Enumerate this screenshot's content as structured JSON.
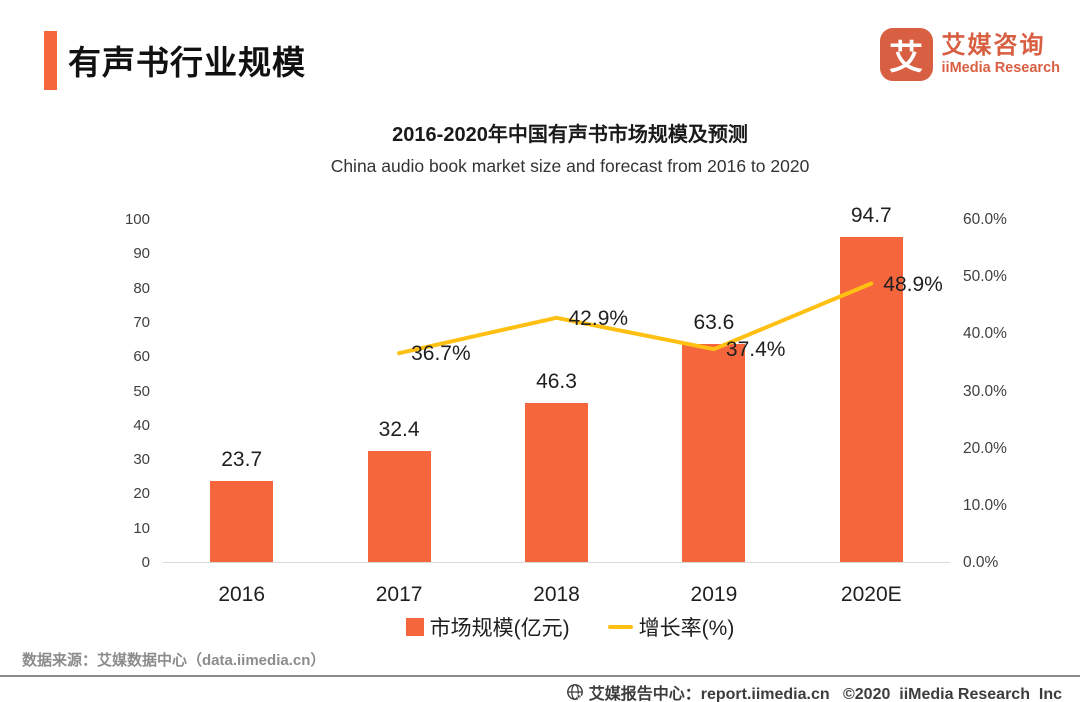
{
  "header": {
    "title": "有声书行业规模",
    "logo": {
      "symbol": "艾",
      "name_cn": "艾媒咨询",
      "name_en": "iiMedia Research"
    }
  },
  "chart": {
    "title": "2016-2020年中国有声书市场规模及预测",
    "subtitle": "China audio book market size and forecast from 2016 to 2020"
  },
  "chart_data": {
    "type": "bar",
    "categories": [
      "2016",
      "2017",
      "2018",
      "2019",
      "2020E"
    ],
    "series": [
      {
        "name": "市场规模(亿元)",
        "type": "bar",
        "axis": "left",
        "values": [
          23.7,
          32.4,
          46.3,
          63.6,
          94.7
        ],
        "labels": [
          "23.7",
          "32.4",
          "46.3",
          "63.6",
          "94.7"
        ],
        "color": "#F5663C"
      },
      {
        "name": "增长率(%)",
        "type": "line",
        "axis": "right",
        "values": [
          null,
          36.7,
          42.9,
          37.4,
          48.9
        ],
        "labels": [
          "",
          "36.7%",
          "42.9%",
          "37.4%",
          "48.9%"
        ],
        "color": "#FFC013"
      }
    ],
    "left_axis": {
      "min": 0,
      "max": 100,
      "ticks": [
        "0",
        "10",
        "20",
        "30",
        "40",
        "50",
        "60",
        "70",
        "80",
        "90",
        "100"
      ],
      "tick_values": [
        0,
        10,
        20,
        30,
        40,
        50,
        60,
        70,
        80,
        90,
        100
      ]
    },
    "right_axis": {
      "min": 0,
      "max": 60,
      "ticks": [
        "0.0%",
        "10.0%",
        "20.0%",
        "30.0%",
        "40.0%",
        "50.0%",
        "60.0%"
      ],
      "tick_values": [
        0,
        10,
        20,
        30,
        40,
        50,
        60
      ]
    },
    "legend": [
      {
        "label": "市场规模(亿元)",
        "marker": "bar",
        "color": "#F5663C"
      },
      {
        "label": "增长率(%)",
        "marker": "line",
        "color": "#FFC013"
      }
    ],
    "grid": false,
    "legend_position": "bottom"
  },
  "source": "数据来源：艾媒数据中心（data.iimedia.cn）",
  "footer": {
    "icon": "globe-icon",
    "text": "艾媒报告中心：report.iimedia.cn   ©2020  iiMedia Research  Inc"
  },
  "colors": {
    "accent": "#F5663C",
    "logo": "#D95F42",
    "line": "#FFC013"
  }
}
